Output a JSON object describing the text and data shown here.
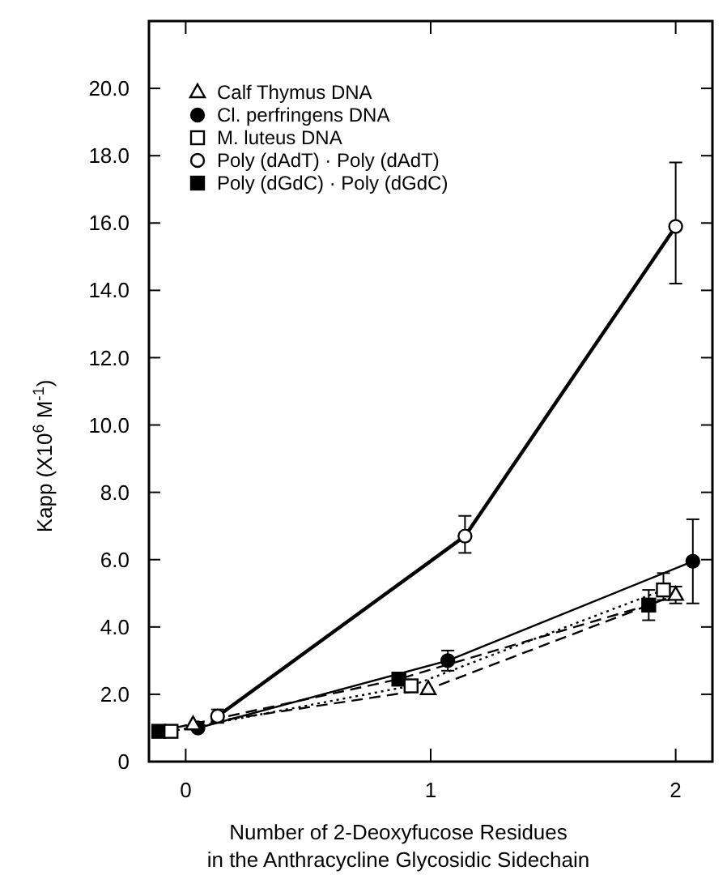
{
  "chart_data": {
    "type": "line",
    "xlabel": "Number of 2-Deoxyfucose Residues\nin the Anthracycline Glycosidic Sidechain",
    "ylabel": "Kapp (X10$^{6}$ M$^{-1}$)",
    "xlim": [
      -0.15,
      2.15
    ],
    "xticks": [
      0,
      1,
      2
    ],
    "ylim": [
      0,
      22
    ],
    "yticks": [
      0,
      {
        "value": 2,
        "label": "2.0"
      },
      {
        "value": 4,
        "label": "4.0"
      },
      {
        "value": 6,
        "label": "6.0"
      },
      {
        "value": 8,
        "label": "8.0"
      },
      {
        "value": 10,
        "label": "10.0"
      },
      {
        "value": 12,
        "label": "12.0"
      },
      {
        "value": 14,
        "label": "14.0"
      },
      {
        "value": 16,
        "label": "16.0"
      },
      {
        "value": 18,
        "label": "18.0"
      },
      {
        "value": 20,
        "label": "20.0"
      }
    ],
    "grid": false,
    "legend": "top left",
    "series": [
      {
        "name": "Calf Thymus DNA",
        "color": "#000000",
        "marker": "triangle",
        "line_style": "dashed",
        "x": [
          0.03,
          0.99,
          2.0
        ],
        "values": [
          1.1,
          2.15,
          4.95
        ],
        "errors": [
          null,
          null,
          [
            4.7,
            5.2
          ]
        ]
      },
      {
        "name": "Cl. perfringens DNA",
        "color": "#000000",
        "marker": "circle",
        "line_style": "solid",
        "x": [
          0.05,
          1.07,
          2.07
        ],
        "values": [
          1.0,
          3.0,
          5.95
        ],
        "errors": [
          null,
          [
            2.7,
            3.3
          ],
          [
            4.7,
            7.2
          ]
        ]
      },
      {
        "name": "M. luteus DNA",
        "color": "#000000",
        "marker": "square",
        "line_style": "dotted",
        "x": [
          -0.06,
          0.92,
          1.95
        ],
        "values": [
          0.9,
          2.25,
          5.1
        ],
        "errors": [
          null,
          null,
          [
            4.8,
            5.6
          ]
        ]
      },
      {
        "name": "Poly (dAdT) · Poly (dAdT)",
        "color": "#000000",
        "marker": "circle",
        "line_style": "solid",
        "x": [
          0.13,
          1.14,
          2.0
        ],
        "values": [
          1.35,
          6.7,
          15.9
        ],
        "errors": [
          [
            1.15,
            1.55
          ],
          [
            6.2,
            7.3
          ],
          [
            14.2,
            17.8
          ]
        ]
      },
      {
        "name": "Poly (dGdC) · Poly (dGdC)",
        "color": "#000000",
        "marker": "square",
        "line_style": "dashed",
        "x": [
          -0.11,
          0.87,
          1.89
        ],
        "values": [
          0.9,
          2.45,
          4.65
        ],
        "errors": [
          null,
          null,
          [
            4.2,
            5.1
          ]
        ]
      }
    ]
  }
}
